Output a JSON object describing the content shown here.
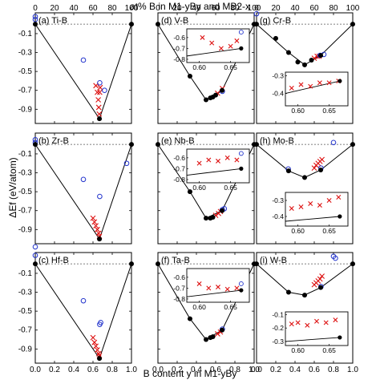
{
  "figure": {
    "top_axis_label": "at% B in M1-yBy and MB2-x",
    "bottom_axis_label": "B content y in M1-yBy",
    "y_axis_label": "ΔEf (eV/atom)"
  },
  "chart_data": [
    {
      "type": "scatter",
      "label": "(a) Ti-B",
      "xlim": [
        0,
        1
      ],
      "ylim": [
        -1.05,
        0.12
      ],
      "yticks": [
        -0.9,
        -0.7,
        -0.5,
        -0.3,
        -0.1
      ],
      "hull": [
        [
          0,
          0
        ],
        [
          0.667,
          -1.0
        ],
        [
          1,
          0
        ]
      ],
      "hull_points": [
        [
          0,
          0
        ],
        [
          0.667,
          -1.0
        ],
        [
          1,
          0
        ]
      ],
      "crosses": [
        [
          0.63,
          -0.65
        ],
        [
          0.645,
          -0.72
        ],
        [
          0.655,
          -0.8
        ],
        [
          0.66,
          -0.88
        ],
        [
          0.665,
          -0.95
        ],
        [
          0.67,
          -0.72
        ],
        [
          0.675,
          -0.67
        ]
      ],
      "circles": [
        [
          0.0,
          0.08
        ],
        [
          0.0,
          0.05
        ],
        [
          0.5,
          -0.38
        ],
        [
          0.67,
          -0.62
        ],
        [
          0.72,
          -0.7
        ]
      ],
      "show_top_ticks": true,
      "show_bottom_ticks": false
    },
    {
      "type": "scatter",
      "label": "(b) Zr-B",
      "xlim": [
        0,
        1
      ],
      "ylim": [
        -1.05,
        0.12
      ],
      "yticks": [
        -0.9,
        -0.7,
        -0.5,
        -0.3,
        -0.1
      ],
      "hull": [
        [
          0,
          0
        ],
        [
          0.667,
          -1.0
        ],
        [
          1,
          0
        ]
      ],
      "hull_points": [
        [
          0,
          0
        ],
        [
          0.667,
          -1.0
        ],
        [
          1,
          0
        ]
      ],
      "crosses": [
        [
          0.6,
          -0.78
        ],
        [
          0.615,
          -0.82
        ],
        [
          0.63,
          -0.86
        ],
        [
          0.645,
          -0.9
        ],
        [
          0.66,
          -0.94
        ],
        [
          0.667,
          -0.97
        ]
      ],
      "circles": [
        [
          0.0,
          0.05
        ],
        [
          0.0,
          0.02
        ],
        [
          0.5,
          -0.37
        ],
        [
          0.67,
          -0.55
        ],
        [
          0.95,
          -0.2
        ]
      ],
      "show_top_ticks": false,
      "show_bottom_ticks": false
    },
    {
      "type": "scatter",
      "label": "(c) Hf-B",
      "xlim": [
        0,
        1
      ],
      "ylim": [
        -1.05,
        0.12
      ],
      "yticks": [
        -0.9,
        -0.7,
        -0.5,
        -0.3,
        -0.1
      ],
      "hull": [
        [
          0,
          0
        ],
        [
          0.667,
          -1.0
        ],
        [
          1,
          0
        ]
      ],
      "hull_points": [
        [
          0,
          0
        ],
        [
          0.667,
          -1.0
        ],
        [
          1,
          0
        ]
      ],
      "crosses": [
        [
          0.6,
          -0.78
        ],
        [
          0.615,
          -0.83
        ],
        [
          0.63,
          -0.87
        ],
        [
          0.645,
          -0.91
        ],
        [
          0.66,
          -0.95
        ],
        [
          0.667,
          -0.97
        ]
      ],
      "circles": [
        [
          0.0,
          0.18
        ],
        [
          0.0,
          0.09
        ],
        [
          0.5,
          -0.39
        ],
        [
          0.67,
          -0.64
        ],
        [
          0.68,
          -0.62
        ]
      ],
      "show_top_ticks": false,
      "show_bottom_ticks": true
    },
    {
      "type": "scatter",
      "label": "(d) V-B",
      "xlim": [
        0,
        1
      ],
      "ylim": [
        -1.05,
        0.12
      ],
      "yticks": [
        -0.9,
        -0.7,
        -0.5,
        -0.3,
        -0.1
      ],
      "hull": [
        [
          0,
          0
        ],
        [
          0.333,
          -0.55
        ],
        [
          0.5,
          -0.8
        ],
        [
          0.6,
          -0.75
        ],
        [
          0.667,
          -0.7
        ],
        [
          1,
          0
        ]
      ],
      "hull_points": [
        [
          0,
          0
        ],
        [
          0.333,
          -0.55
        ],
        [
          0.5,
          -0.8
        ],
        [
          0.545,
          -0.78
        ],
        [
          0.571,
          -0.77
        ],
        [
          0.6,
          -0.75
        ],
        [
          0.667,
          -0.7
        ],
        [
          1,
          0
        ]
      ],
      "crosses": [
        [
          0.62,
          -0.73
        ],
        [
          0.67,
          -0.68
        ]
      ],
      "circles": [
        [
          0.67,
          -0.71
        ]
      ],
      "inset": {
        "xlim": [
          0.58,
          0.68
        ],
        "ylim": [
          -0.83,
          -0.52
        ],
        "xticks": [
          0.6,
          0.65
        ],
        "yticks": [
          -0.8,
          -0.7,
          -0.6
        ],
        "line": [
          [
            0.58,
            -0.77
          ],
          [
            0.667,
            -0.7
          ]
        ],
        "crosses": [
          [
            0.605,
            -0.6
          ],
          [
            0.62,
            -0.65
          ],
          [
            0.635,
            -0.7
          ],
          [
            0.65,
            -0.68
          ],
          [
            0.66,
            -0.63
          ]
        ],
        "circles": [
          [
            0.667,
            -0.55
          ]
        ],
        "points": [
          [
            0.667,
            -0.7
          ]
        ]
      },
      "show_top_ticks": true,
      "show_bottom_ticks": false
    },
    {
      "type": "scatter",
      "label": "(e) Nb-B",
      "xlim": [
        0,
        1
      ],
      "ylim": [
        -1.05,
        0.12
      ],
      "yticks": [
        -0.9,
        -0.7,
        -0.5,
        -0.3,
        -0.1
      ],
      "hull": [
        [
          0,
          0
        ],
        [
          0.333,
          -0.5
        ],
        [
          0.5,
          -0.78
        ],
        [
          0.667,
          -0.7
        ],
        [
          1,
          0
        ]
      ],
      "hull_points": [
        [
          0,
          0
        ],
        [
          0.333,
          -0.5
        ],
        [
          0.5,
          -0.78
        ],
        [
          0.545,
          -0.78
        ],
        [
          0.571,
          -0.77
        ],
        [
          0.667,
          -0.7
        ],
        [
          1,
          0
        ]
      ],
      "crosses": [
        [
          0.6,
          -0.75
        ],
        [
          0.63,
          -0.73
        ],
        [
          0.65,
          -0.71
        ]
      ],
      "circles": [
        [
          0.67,
          -0.69
        ],
        [
          0.69,
          -0.68
        ]
      ],
      "inset": {
        "xlim": [
          0.58,
          0.68
        ],
        "ylim": [
          -0.83,
          -0.52
        ],
        "xticks": [
          0.6,
          0.65
        ],
        "yticks": [
          -0.8,
          -0.7,
          -0.6
        ],
        "line": [
          [
            0.58,
            -0.76
          ],
          [
            0.667,
            -0.7
          ]
        ],
        "crosses": [
          [
            0.6,
            -0.65
          ],
          [
            0.615,
            -0.62
          ],
          [
            0.63,
            -0.63
          ],
          [
            0.645,
            -0.6
          ],
          [
            0.66,
            -0.62
          ]
        ],
        "circles": [
          [
            0.667,
            -0.56
          ]
        ],
        "points": [
          [
            0.667,
            -0.7
          ]
        ]
      },
      "show_top_ticks": false,
      "show_bottom_ticks": false
    },
    {
      "type": "scatter",
      "label": "(f) Ta-B",
      "xlim": [
        0,
        1
      ],
      "ylim": [
        -1.05,
        0.12
      ],
      "yticks": [
        -0.9,
        -0.7,
        -0.5,
        -0.3,
        -0.1
      ],
      "hull": [
        [
          0,
          0
        ],
        [
          0.333,
          -0.58
        ],
        [
          0.5,
          -0.8
        ],
        [
          0.667,
          -0.7
        ],
        [
          1,
          0
        ]
      ],
      "hull_points": [
        [
          0,
          0
        ],
        [
          0.333,
          -0.58
        ],
        [
          0.5,
          -0.8
        ],
        [
          0.545,
          -0.78
        ],
        [
          0.571,
          -0.77
        ],
        [
          0.667,
          -0.7
        ],
        [
          1,
          0
        ]
      ],
      "crosses": [
        [
          0.62,
          -0.74
        ],
        [
          0.65,
          -0.72
        ]
      ],
      "circles": [
        [
          0.67,
          -0.69
        ]
      ],
      "inset": {
        "xlim": [
          0.58,
          0.68
        ],
        "ylim": [
          -0.83,
          -0.52
        ],
        "xticks": [
          0.6,
          0.65
        ],
        "yticks": [
          -0.8,
          -0.7,
          -0.6
        ],
        "line": [
          [
            0.58,
            -0.78
          ],
          [
            0.667,
            -0.72
          ]
        ],
        "crosses": [
          [
            0.6,
            -0.66
          ],
          [
            0.615,
            -0.7
          ],
          [
            0.63,
            -0.69
          ],
          [
            0.645,
            -0.71
          ],
          [
            0.66,
            -0.7
          ]
        ],
        "circles": [
          [
            0.667,
            -0.66
          ]
        ],
        "points": [
          [
            0.667,
            -0.72
          ]
        ]
      },
      "show_top_ticks": false,
      "show_bottom_ticks": true
    },
    {
      "type": "scatter",
      "label": "(g) Cr-B",
      "xlim": [
        0,
        1
      ],
      "ylim": [
        -1.05,
        0.12
      ],
      "yticks": [],
      "hull": [
        [
          0,
          0
        ],
        [
          0.333,
          -0.3
        ],
        [
          0.5,
          -0.43
        ],
        [
          0.667,
          -0.33
        ],
        [
          1,
          0
        ]
      ],
      "hull_points": [
        [
          0,
          0
        ],
        [
          0.2,
          -0.15
        ],
        [
          0.333,
          -0.3
        ],
        [
          0.429,
          -0.4
        ],
        [
          0.5,
          -0.43
        ],
        [
          0.571,
          -0.38
        ],
        [
          0.667,
          -0.33
        ],
        [
          1,
          0
        ]
      ],
      "crosses": [
        [
          0.6,
          -0.36
        ],
        [
          0.63,
          -0.34
        ],
        [
          0.65,
          -0.34
        ]
      ],
      "circles": [
        [
          0.66,
          -0.33
        ],
        [
          0.7,
          -0.32
        ],
        [
          0.0,
          0.11
        ]
      ],
      "inset": {
        "xlim": [
          0.58,
          0.68
        ],
        "ylim": [
          -0.47,
          -0.28
        ],
        "xticks": [
          0.6,
          0.65
        ],
        "yticks": [
          -0.4,
          -0.3
        ],
        "line": [
          [
            0.58,
            -0.4
          ],
          [
            0.667,
            -0.33
          ]
        ],
        "crosses": [
          [
            0.59,
            -0.37
          ],
          [
            0.605,
            -0.35
          ],
          [
            0.62,
            -0.36
          ],
          [
            0.635,
            -0.34
          ],
          [
            0.65,
            -0.34
          ],
          [
            0.665,
            -0.33
          ]
        ],
        "circles": [],
        "points": [
          [
            0.667,
            -0.33
          ]
        ]
      },
      "show_top_ticks": true,
      "show_bottom_ticks": false
    },
    {
      "type": "scatter",
      "label": "(h) Mo-B",
      "xlim": [
        0,
        1
      ],
      "ylim": [
        -1.05,
        0.12
      ],
      "yticks": [],
      "hull": [
        [
          0,
          0
        ],
        [
          0.333,
          -0.28
        ],
        [
          0.5,
          -0.35
        ],
        [
          0.667,
          -0.27
        ],
        [
          1,
          0
        ]
      ],
      "hull_points": [
        [
          0,
          0
        ],
        [
          0.333,
          -0.28
        ],
        [
          0.5,
          -0.35
        ],
        [
          0.667,
          -0.27
        ],
        [
          1,
          0
        ]
      ],
      "crosses": [
        [
          0.6,
          -0.25
        ],
        [
          0.62,
          -0.22
        ],
        [
          0.64,
          -0.2
        ],
        [
          0.66,
          -0.18
        ],
        [
          0.68,
          -0.16
        ]
      ],
      "circles": [
        [
          0.33,
          -0.26
        ],
        [
          0.8,
          0.02
        ],
        [
          0.67,
          -0.25
        ]
      ],
      "inset": {
        "xlim": [
          0.58,
          0.68
        ],
        "ylim": [
          -0.46,
          -0.25
        ],
        "xticks": [
          0.6,
          0.65
        ],
        "yticks": [
          -0.4,
          -0.3
        ],
        "line": [
          [
            0.58,
            -0.43
          ],
          [
            0.667,
            -0.4
          ]
        ],
        "crosses": [
          [
            0.59,
            -0.35
          ],
          [
            0.605,
            -0.34
          ],
          [
            0.62,
            -0.32
          ],
          [
            0.635,
            -0.33
          ],
          [
            0.65,
            -0.3
          ],
          [
            0.665,
            -0.28
          ]
        ],
        "circles": [],
        "points": [
          [
            0.667,
            -0.4
          ]
        ]
      },
      "show_top_ticks": false,
      "show_bottom_ticks": false
    },
    {
      "type": "scatter",
      "label": "(i) W-B",
      "xlim": [
        0,
        1
      ],
      "ylim": [
        -1.05,
        0.12
      ],
      "yticks": [],
      "hull": [
        [
          0,
          0
        ],
        [
          0.333,
          -0.3
        ],
        [
          0.5,
          -0.33
        ],
        [
          0.667,
          -0.25
        ],
        [
          1,
          0
        ]
      ],
      "hull_points": [
        [
          0,
          0
        ],
        [
          0.333,
          -0.3
        ],
        [
          0.5,
          -0.33
        ],
        [
          0.667,
          -0.25
        ],
        [
          1,
          0
        ]
      ],
      "crosses": [
        [
          0.6,
          -0.22
        ],
        [
          0.62,
          -0.2
        ],
        [
          0.64,
          -0.18
        ],
        [
          0.66,
          -0.16
        ],
        [
          0.68,
          -0.13
        ]
      ],
      "circles": [
        [
          0.8,
          0.08
        ],
        [
          0.82,
          0.06
        ],
        [
          0.67,
          -0.24
        ]
      ],
      "inset": {
        "xlim": [
          0.58,
          0.68
        ],
        "ylim": [
          -0.33,
          -0.08
        ],
        "xticks": [
          0.6,
          0.65
        ],
        "yticks": [
          -0.3,
          -0.2,
          -0.1
        ],
        "line": [
          [
            0.58,
            -0.3
          ],
          [
            0.667,
            -0.27
          ]
        ],
        "crosses": [
          [
            0.59,
            -0.17
          ],
          [
            0.6,
            -0.16
          ],
          [
            0.615,
            -0.18
          ],
          [
            0.63,
            -0.15
          ],
          [
            0.645,
            -0.16
          ],
          [
            0.66,
            -0.14
          ]
        ],
        "circles": [],
        "points": [
          [
            0.667,
            -0.27
          ]
        ]
      },
      "show_top_ticks": false,
      "show_bottom_ticks": true
    }
  ],
  "axes": {
    "xticks": [
      0,
      20,
      40,
      60,
      80,
      100
    ],
    "xticks_bottom": [
      "0.0",
      "0.2",
      "0.4",
      "0.6",
      "0.8",
      "1.0"
    ]
  },
  "colors": {
    "line": "#000000",
    "cross": "#dd1111",
    "circle": "#2233cc",
    "point": "#000000",
    "dashed": "#555555"
  }
}
